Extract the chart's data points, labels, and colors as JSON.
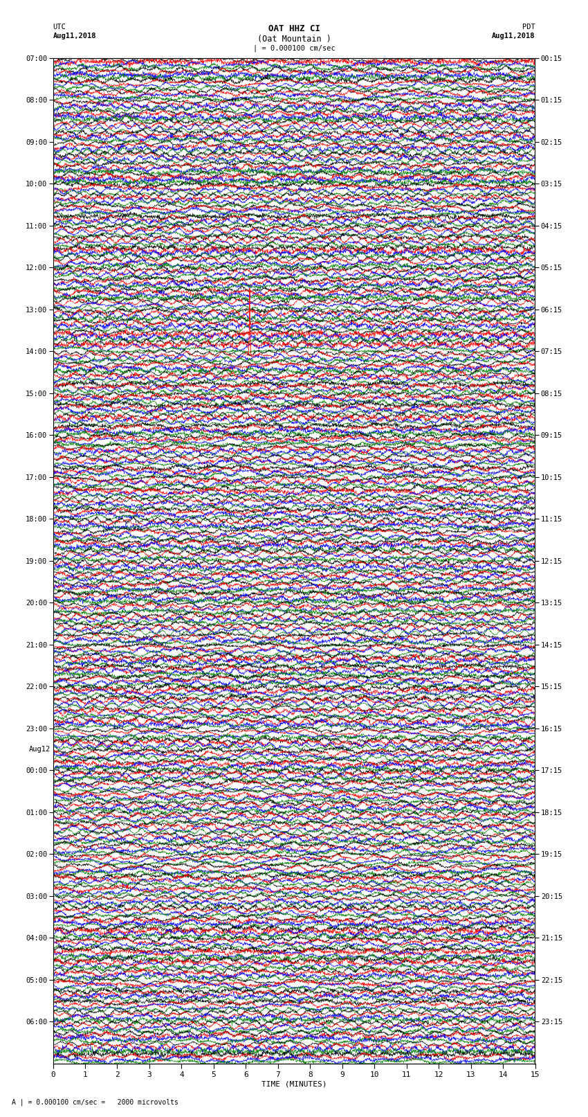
{
  "title_line1": "OAT HHZ CI",
  "title_line2": "(Oat Mountain )",
  "utc_label": "UTC",
  "utc_date": "Aug11,2018",
  "pdt_label": "PDT",
  "pdt_date": "Aug11,2018",
  "scale_label": "| = 0.000100 cm/sec",
  "scale_label2": "A | = 0.000100 cm/sec =   2000 microvolts",
  "xlabel": "TIME (MINUTES)",
  "trace_colors": [
    "black",
    "red",
    "blue",
    "green"
  ],
  "bg_color": "white",
  "n_rows": 96,
  "left_labels": [
    "07:00",
    "08:00",
    "09:00",
    "10:00",
    "11:00",
    "12:00",
    "13:00",
    "14:00",
    "15:00",
    "16:00",
    "17:00",
    "18:00",
    "19:00",
    "20:00",
    "21:00",
    "22:00",
    "23:00",
    "00:00",
    "01:00",
    "02:00",
    "03:00",
    "04:00",
    "05:00",
    "06:00"
  ],
  "right_labels": [
    "00:15",
    "01:15",
    "02:15",
    "03:15",
    "04:15",
    "05:15",
    "06:15",
    "07:15",
    "08:15",
    "09:15",
    "10:15",
    "11:15",
    "12:15",
    "13:15",
    "14:15",
    "15:15",
    "16:15",
    "17:15",
    "18:15",
    "19:15",
    "20:15",
    "21:15",
    "22:15",
    "23:15"
  ],
  "figwidth": 8.5,
  "figheight": 16.13,
  "dpi": 100
}
